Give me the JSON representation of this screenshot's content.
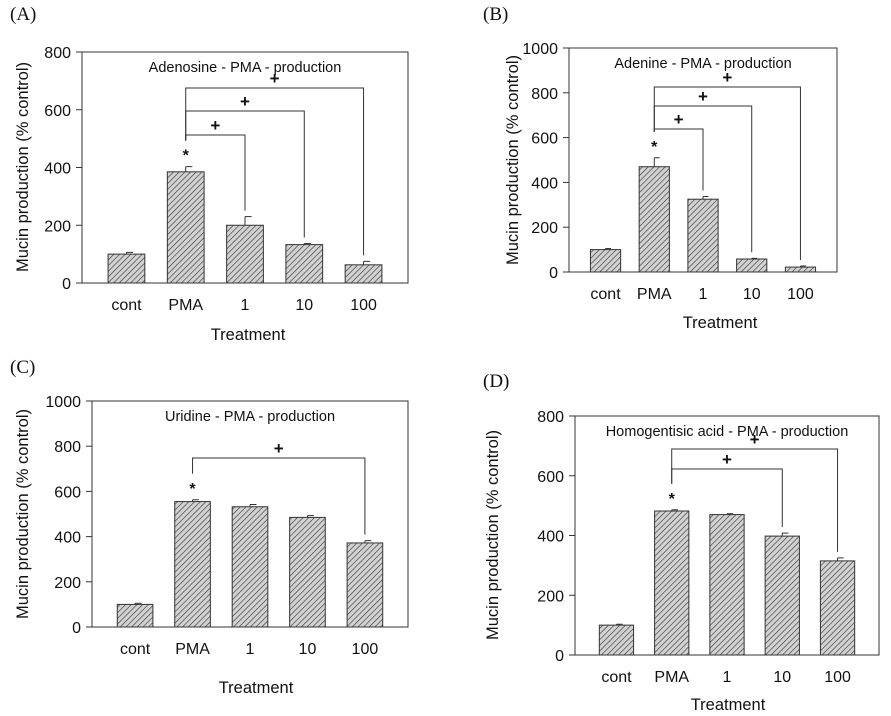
{
  "chart_data": [
    {
      "type": "bar",
      "panel": "(A)",
      "title": "Adenosine - PMA - production",
      "xlabel": "Treatment",
      "ylabel": "Mucin production (% control)",
      "ylim": [
        0,
        800
      ],
      "yticks": [
        0,
        200,
        400,
        600,
        800
      ],
      "categories": [
        "cont",
        "PMA",
        "1",
        "10",
        "100"
      ],
      "values": [
        100,
        385,
        200,
        133,
        63
      ],
      "errors": [
        6,
        18,
        30,
        4,
        12
      ],
      "significance": [
        {
          "label": "*",
          "category": "PMA"
        },
        {
          "label": "+",
          "from": "PMA",
          "to": "1"
        },
        {
          "label": "+",
          "from": "PMA",
          "to": "10"
        },
        {
          "label": "+",
          "from": "PMA",
          "to": "100"
        }
      ]
    },
    {
      "type": "bar",
      "panel": "(B)",
      "title": "Adenine - PMA - production",
      "xlabel": "Treatment",
      "ylabel": "Mucin production (% control)",
      "ylim": [
        0,
        1000
      ],
      "yticks": [
        0,
        200,
        400,
        600,
        800,
        1000
      ],
      "categories": [
        "cont",
        "PMA",
        "1",
        "10",
        "100"
      ],
      "values": [
        100,
        470,
        325,
        58,
        22
      ],
      "errors": [
        5,
        40,
        12,
        3,
        5
      ],
      "significance": [
        {
          "label": "*",
          "category": "PMA"
        },
        {
          "label": "+",
          "from": "PMA",
          "to": "1"
        },
        {
          "label": "+",
          "from": "PMA",
          "to": "10"
        },
        {
          "label": "+",
          "from": "PMA",
          "to": "100"
        }
      ]
    },
    {
      "type": "bar",
      "panel": "(C)",
      "title": "Uridine - PMA - production",
      "xlabel": "Treatment",
      "ylabel": "Mucin production (% control)",
      "ylim": [
        0,
        1000
      ],
      "yticks": [
        0,
        200,
        400,
        600,
        800,
        1000
      ],
      "categories": [
        "cont",
        "PMA",
        "1",
        "10",
        "100"
      ],
      "values": [
        100,
        555,
        532,
        485,
        372
      ],
      "errors": [
        5,
        8,
        10,
        8,
        10
      ],
      "significance": [
        {
          "label": "*",
          "category": "PMA"
        },
        {
          "label": "+",
          "from": "PMA",
          "to": "100"
        }
      ]
    },
    {
      "type": "bar",
      "panel": "(D)",
      "title": "Homogentisic acid - PMA - production",
      "xlabel": "Treatment",
      "ylabel": "Mucin production (% control)",
      "ylim": [
        0,
        800
      ],
      "yticks": [
        0,
        200,
        400,
        600,
        800
      ],
      "categories": [
        "cont",
        "PMA",
        "1",
        "10",
        "100"
      ],
      "values": [
        100,
        482,
        470,
        398,
        315
      ],
      "errors": [
        3,
        4,
        3,
        10,
        10
      ],
      "significance": [
        {
          "label": "*",
          "category": "PMA"
        },
        {
          "label": "+",
          "from": "PMA",
          "to": "10"
        },
        {
          "label": "+",
          "from": "PMA",
          "to": "100"
        }
      ]
    }
  ]
}
